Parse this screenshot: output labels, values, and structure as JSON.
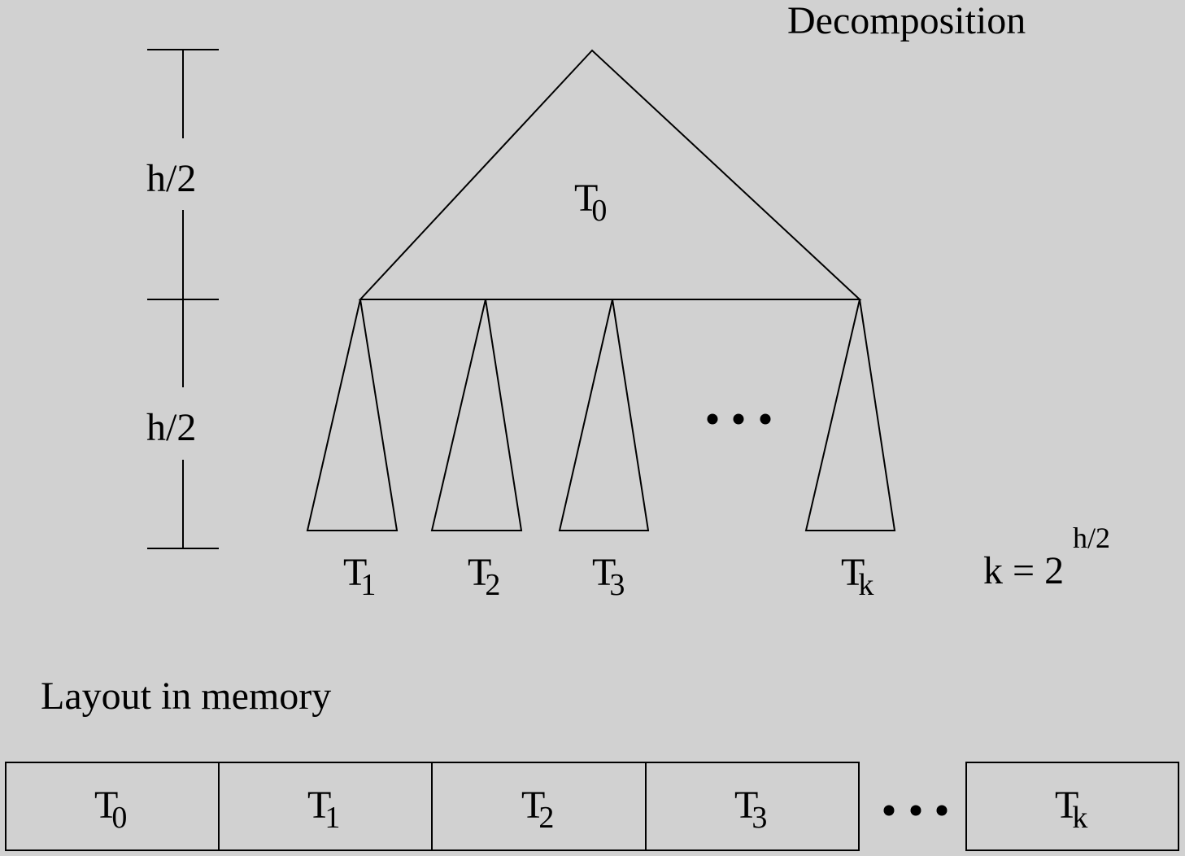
{
  "title": "Decomposition",
  "height_labels": [
    "h/2",
    "h/2"
  ],
  "top_tree": {
    "label": "T",
    "sub": "0"
  },
  "subtrees": [
    {
      "label": "T",
      "sub": "1"
    },
    {
      "label": "T",
      "sub": "2"
    },
    {
      "label": "T",
      "sub": "3"
    },
    {
      "label": "T",
      "sub": "k"
    }
  ],
  "k_formula": {
    "base": "k = 2",
    "exponent": "h/2"
  },
  "layout_title": "Layout in memory",
  "memory_cells": [
    {
      "label": "T",
      "sub": "0"
    },
    {
      "label": "T",
      "sub": "1"
    },
    {
      "label": "T",
      "sub": "2"
    },
    {
      "label": "T",
      "sub": "3"
    },
    {
      "label": "T",
      "sub": "k"
    }
  ]
}
